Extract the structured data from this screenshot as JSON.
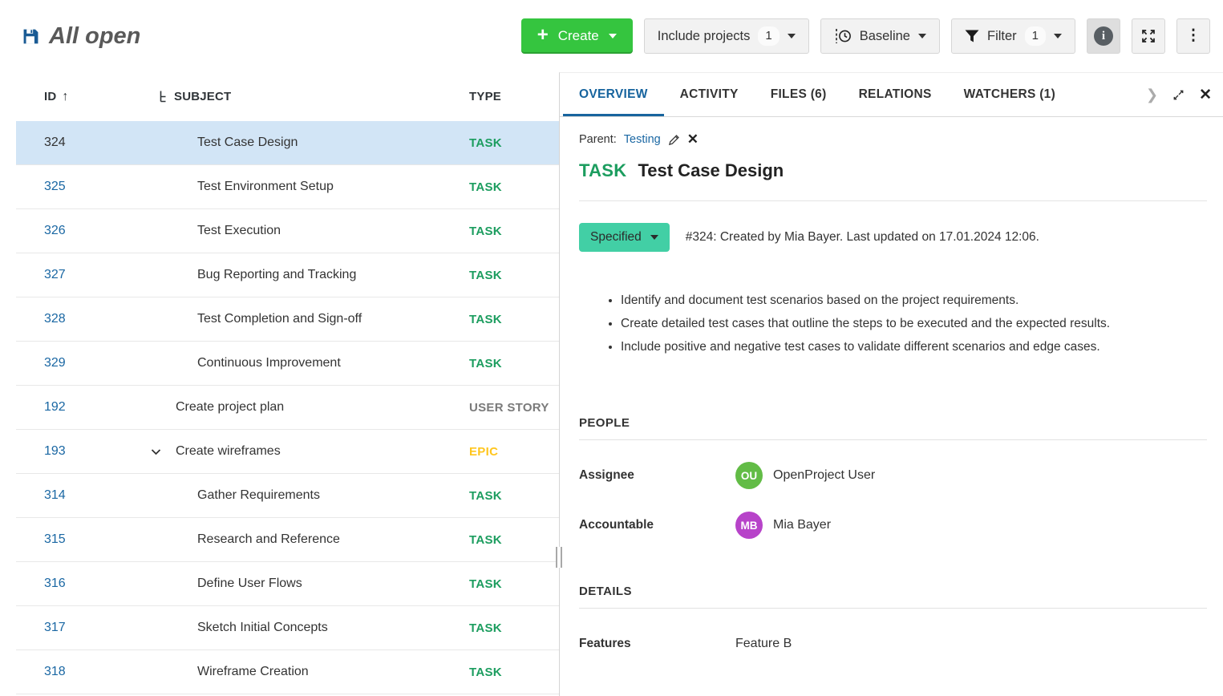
{
  "header": {
    "title": "All open",
    "create_label": "Create",
    "include_projects": {
      "label": "Include projects",
      "count": "1"
    },
    "baseline_label": "Baseline",
    "filter": {
      "label": "Filter",
      "count": "1"
    }
  },
  "table": {
    "columns": {
      "id": "ID",
      "subject": "SUBJECT",
      "type": "TYPE"
    },
    "rows": [
      {
        "id": "324",
        "subject": "Test Case Design",
        "type": "TASK",
        "indent": 1,
        "selected": true
      },
      {
        "id": "325",
        "subject": "Test Environment Setup",
        "type": "TASK",
        "indent": 1
      },
      {
        "id": "326",
        "subject": "Test Execution",
        "type": "TASK",
        "indent": 1
      },
      {
        "id": "327",
        "subject": "Bug Reporting and Tracking",
        "type": "TASK",
        "indent": 1
      },
      {
        "id": "328",
        "subject": "Test Completion and Sign-off",
        "type": "TASK",
        "indent": 1
      },
      {
        "id": "329",
        "subject": "Continuous Improvement",
        "type": "TASK",
        "indent": 1
      },
      {
        "id": "192",
        "subject": "Create project plan",
        "type": "USER STORY",
        "indent": 0
      },
      {
        "id": "193",
        "subject": "Create wireframes",
        "type": "EPIC",
        "indent": 0,
        "collapsible": true
      },
      {
        "id": "314",
        "subject": "Gather Requirements",
        "type": "TASK",
        "indent": 1
      },
      {
        "id": "315",
        "subject": "Research and Reference",
        "type": "TASK",
        "indent": 1
      },
      {
        "id": "316",
        "subject": "Define User Flows",
        "type": "TASK",
        "indent": 1
      },
      {
        "id": "317",
        "subject": "Sketch Initial Concepts",
        "type": "TASK",
        "indent": 1
      },
      {
        "id": "318",
        "subject": "Wireframe Creation",
        "type": "TASK",
        "indent": 1
      }
    ]
  },
  "panel": {
    "tabs": [
      {
        "label": "OVERVIEW",
        "active": true
      },
      {
        "label": "ACTIVITY",
        "active": false
      },
      {
        "label": "FILES (6)",
        "active": false
      },
      {
        "label": "RELATIONS",
        "active": false
      },
      {
        "label": "WATCHERS (1)",
        "active": false
      }
    ],
    "parent": {
      "label": "Parent:",
      "value": "Testing"
    },
    "type": "TASK",
    "title": "Test Case Design",
    "status": "Specified",
    "meta": "#324: Created by Mia Bayer. Last updated on 17.01.2024 12:06.",
    "description_bullets": [
      "Identify and document test scenarios based on the project requirements.",
      "Create detailed test cases that outline the steps to be executed and the expected results.",
      "Include positive and negative test cases to validate different scenarios and edge cases."
    ],
    "sections": {
      "people": {
        "heading": "PEOPLE",
        "fields": [
          {
            "label": "Assignee",
            "avatar": "OU",
            "avatar_color": "#62BC46",
            "name": "OpenProject User"
          },
          {
            "label": "Accountable",
            "avatar": "MB",
            "avatar_color": "#B743C9",
            "name": "Mia Bayer"
          }
        ]
      },
      "details": {
        "heading": "DETAILS",
        "fields": [
          {
            "label": "Features",
            "value": "Feature B"
          }
        ]
      }
    }
  },
  "icons": [
    "save-icon",
    "plus-icon",
    "chevron-down-icon",
    "baseline-clock-icon",
    "filter-funnel-icon",
    "info-icon",
    "fullscreen-icon",
    "kebab-menu-icon",
    "sort-ascending-icon",
    "hierarchy-icon",
    "collapse-chevron-icon",
    "chevron-right-icon",
    "expand-panel-icon",
    "close-icon",
    "edit-pencil-icon"
  ],
  "colors": {
    "accent_blue": "#1A67A3",
    "create_green": "#35C53F",
    "status_teal": "#42CFA5",
    "selected_row": "#D2E5F6",
    "types": {
      "TASK": "#1C9D5F",
      "USER STORY": "#7A7A7A",
      "EPIC": "#FFC61E"
    }
  }
}
